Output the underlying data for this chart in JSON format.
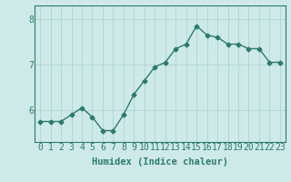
{
  "x": [
    0,
    1,
    2,
    3,
    4,
    5,
    6,
    7,
    8,
    9,
    10,
    11,
    12,
    13,
    14,
    15,
    16,
    17,
    18,
    19,
    20,
    21,
    22,
    23
  ],
  "y": [
    5.75,
    5.75,
    5.75,
    5.9,
    6.05,
    5.85,
    5.55,
    5.55,
    5.9,
    6.35,
    6.65,
    6.95,
    7.05,
    7.35,
    7.45,
    7.85,
    7.65,
    7.6,
    7.45,
    7.45,
    7.35,
    7.35,
    7.05,
    7.05
  ],
  "line_color": "#2d7a6e",
  "marker": "D",
  "marker_size": 2.5,
  "bg_color": "#ceeae8",
  "grid_color": "#aed4d0",
  "xlabel": "Humidex (Indice chaleur)",
  "yticks": [
    6,
    7,
    8
  ],
  "ylim": [
    5.3,
    8.3
  ],
  "xlim": [
    -0.5,
    23.5
  ],
  "xlabel_fontsize": 7.5,
  "tick_fontsize": 7,
  "line_width": 1.0,
  "spine_color": "#2d7a6e"
}
